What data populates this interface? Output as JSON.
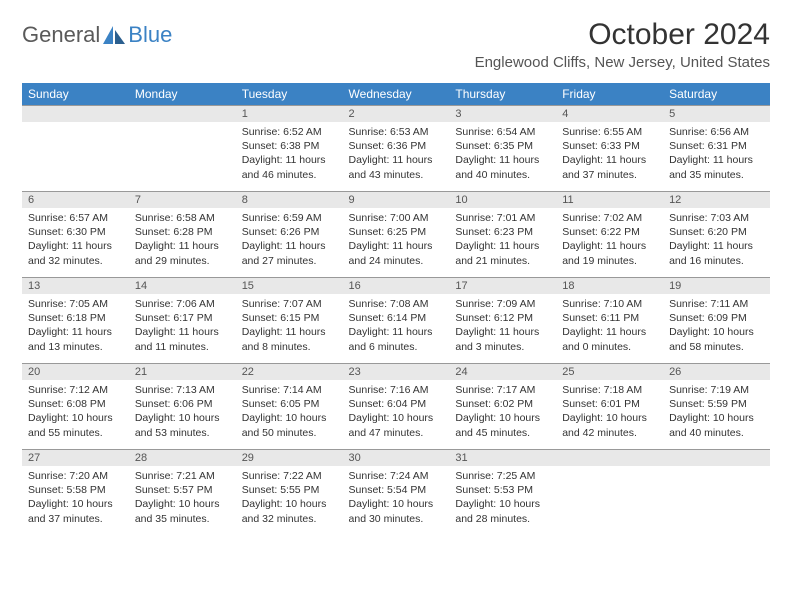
{
  "logo": {
    "text1": "General",
    "text2": "Blue"
  },
  "title": "October 2024",
  "location": "Englewood Cliffs, New Jersey, United States",
  "weekdays": [
    "Sunday",
    "Monday",
    "Tuesday",
    "Wednesday",
    "Thursday",
    "Friday",
    "Saturday"
  ],
  "colors": {
    "header_bg": "#3b82c4",
    "header_fg": "#ffffff",
    "daynum_bg": "#e8e8e8",
    "text": "#333333"
  },
  "weeks": [
    [
      {
        "n": "",
        "sunrise": "",
        "sunset": "",
        "daylight": ""
      },
      {
        "n": "",
        "sunrise": "",
        "sunset": "",
        "daylight": ""
      },
      {
        "n": "1",
        "sunrise": "Sunrise: 6:52 AM",
        "sunset": "Sunset: 6:38 PM",
        "daylight": "Daylight: 11 hours and 46 minutes."
      },
      {
        "n": "2",
        "sunrise": "Sunrise: 6:53 AM",
        "sunset": "Sunset: 6:36 PM",
        "daylight": "Daylight: 11 hours and 43 minutes."
      },
      {
        "n": "3",
        "sunrise": "Sunrise: 6:54 AM",
        "sunset": "Sunset: 6:35 PM",
        "daylight": "Daylight: 11 hours and 40 minutes."
      },
      {
        "n": "4",
        "sunrise": "Sunrise: 6:55 AM",
        "sunset": "Sunset: 6:33 PM",
        "daylight": "Daylight: 11 hours and 37 minutes."
      },
      {
        "n": "5",
        "sunrise": "Sunrise: 6:56 AM",
        "sunset": "Sunset: 6:31 PM",
        "daylight": "Daylight: 11 hours and 35 minutes."
      }
    ],
    [
      {
        "n": "6",
        "sunrise": "Sunrise: 6:57 AM",
        "sunset": "Sunset: 6:30 PM",
        "daylight": "Daylight: 11 hours and 32 minutes."
      },
      {
        "n": "7",
        "sunrise": "Sunrise: 6:58 AM",
        "sunset": "Sunset: 6:28 PM",
        "daylight": "Daylight: 11 hours and 29 minutes."
      },
      {
        "n": "8",
        "sunrise": "Sunrise: 6:59 AM",
        "sunset": "Sunset: 6:26 PM",
        "daylight": "Daylight: 11 hours and 27 minutes."
      },
      {
        "n": "9",
        "sunrise": "Sunrise: 7:00 AM",
        "sunset": "Sunset: 6:25 PM",
        "daylight": "Daylight: 11 hours and 24 minutes."
      },
      {
        "n": "10",
        "sunrise": "Sunrise: 7:01 AM",
        "sunset": "Sunset: 6:23 PM",
        "daylight": "Daylight: 11 hours and 21 minutes."
      },
      {
        "n": "11",
        "sunrise": "Sunrise: 7:02 AM",
        "sunset": "Sunset: 6:22 PM",
        "daylight": "Daylight: 11 hours and 19 minutes."
      },
      {
        "n": "12",
        "sunrise": "Sunrise: 7:03 AM",
        "sunset": "Sunset: 6:20 PM",
        "daylight": "Daylight: 11 hours and 16 minutes."
      }
    ],
    [
      {
        "n": "13",
        "sunrise": "Sunrise: 7:05 AM",
        "sunset": "Sunset: 6:18 PM",
        "daylight": "Daylight: 11 hours and 13 minutes."
      },
      {
        "n": "14",
        "sunrise": "Sunrise: 7:06 AM",
        "sunset": "Sunset: 6:17 PM",
        "daylight": "Daylight: 11 hours and 11 minutes."
      },
      {
        "n": "15",
        "sunrise": "Sunrise: 7:07 AM",
        "sunset": "Sunset: 6:15 PM",
        "daylight": "Daylight: 11 hours and 8 minutes."
      },
      {
        "n": "16",
        "sunrise": "Sunrise: 7:08 AM",
        "sunset": "Sunset: 6:14 PM",
        "daylight": "Daylight: 11 hours and 6 minutes."
      },
      {
        "n": "17",
        "sunrise": "Sunrise: 7:09 AM",
        "sunset": "Sunset: 6:12 PM",
        "daylight": "Daylight: 11 hours and 3 minutes."
      },
      {
        "n": "18",
        "sunrise": "Sunrise: 7:10 AM",
        "sunset": "Sunset: 6:11 PM",
        "daylight": "Daylight: 11 hours and 0 minutes."
      },
      {
        "n": "19",
        "sunrise": "Sunrise: 7:11 AM",
        "sunset": "Sunset: 6:09 PM",
        "daylight": "Daylight: 10 hours and 58 minutes."
      }
    ],
    [
      {
        "n": "20",
        "sunrise": "Sunrise: 7:12 AM",
        "sunset": "Sunset: 6:08 PM",
        "daylight": "Daylight: 10 hours and 55 minutes."
      },
      {
        "n": "21",
        "sunrise": "Sunrise: 7:13 AM",
        "sunset": "Sunset: 6:06 PM",
        "daylight": "Daylight: 10 hours and 53 minutes."
      },
      {
        "n": "22",
        "sunrise": "Sunrise: 7:14 AM",
        "sunset": "Sunset: 6:05 PM",
        "daylight": "Daylight: 10 hours and 50 minutes."
      },
      {
        "n": "23",
        "sunrise": "Sunrise: 7:16 AM",
        "sunset": "Sunset: 6:04 PM",
        "daylight": "Daylight: 10 hours and 47 minutes."
      },
      {
        "n": "24",
        "sunrise": "Sunrise: 7:17 AM",
        "sunset": "Sunset: 6:02 PM",
        "daylight": "Daylight: 10 hours and 45 minutes."
      },
      {
        "n": "25",
        "sunrise": "Sunrise: 7:18 AM",
        "sunset": "Sunset: 6:01 PM",
        "daylight": "Daylight: 10 hours and 42 minutes."
      },
      {
        "n": "26",
        "sunrise": "Sunrise: 7:19 AM",
        "sunset": "Sunset: 5:59 PM",
        "daylight": "Daylight: 10 hours and 40 minutes."
      }
    ],
    [
      {
        "n": "27",
        "sunrise": "Sunrise: 7:20 AM",
        "sunset": "Sunset: 5:58 PM",
        "daylight": "Daylight: 10 hours and 37 minutes."
      },
      {
        "n": "28",
        "sunrise": "Sunrise: 7:21 AM",
        "sunset": "Sunset: 5:57 PM",
        "daylight": "Daylight: 10 hours and 35 minutes."
      },
      {
        "n": "29",
        "sunrise": "Sunrise: 7:22 AM",
        "sunset": "Sunset: 5:55 PM",
        "daylight": "Daylight: 10 hours and 32 minutes."
      },
      {
        "n": "30",
        "sunrise": "Sunrise: 7:24 AM",
        "sunset": "Sunset: 5:54 PM",
        "daylight": "Daylight: 10 hours and 30 minutes."
      },
      {
        "n": "31",
        "sunrise": "Sunrise: 7:25 AM",
        "sunset": "Sunset: 5:53 PM",
        "daylight": "Daylight: 10 hours and 28 minutes."
      },
      {
        "n": "",
        "sunrise": "",
        "sunset": "",
        "daylight": ""
      },
      {
        "n": "",
        "sunrise": "",
        "sunset": "",
        "daylight": ""
      }
    ]
  ]
}
